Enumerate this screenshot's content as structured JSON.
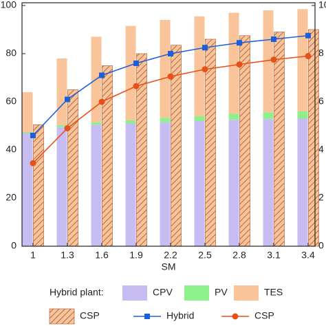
{
  "chart_data": {
    "type": "bar",
    "x_label": "SM",
    "categories": [
      "1",
      "1.3",
      "1.6",
      "1.9",
      "2.2",
      "2.5",
      "2.8",
      "3.1",
      "3.4"
    ],
    "legend_title": "Hybrid plant:",
    "series": [
      {
        "name": "CPV",
        "type": "bar",
        "stack": "hybrid",
        "color": "#c8bdf2",
        "values": [
          47,
          49.5,
          50.5,
          51,
          51.5,
          52,
          52.5,
          52.8,
          53
        ]
      },
      {
        "name": "PV",
        "type": "bar",
        "stack": "hybrid",
        "color": "#8ef08a",
        "values": [
          0.5,
          0.8,
          1,
          1.3,
          1.8,
          2,
          2.5,
          2.8,
          3
        ]
      },
      {
        "name": "TES",
        "type": "bar",
        "stack": "hybrid",
        "color": "#f9c49a",
        "values": [
          16.5,
          27.7,
          35.5,
          39.2,
          40.7,
          41.5,
          42,
          42.4,
          42.5
        ]
      },
      {
        "name": "CSP",
        "type": "bar",
        "stack": "csp",
        "color": "#f9c49a",
        "hatch": "#a0522d",
        "values": [
          50.5,
          65,
          75,
          80,
          83.5,
          86,
          87.5,
          89,
          90
        ]
      },
      {
        "name": "Hybrid",
        "type": "line",
        "axis": "y2",
        "color": "#1f5fd6",
        "marker": "square",
        "values": [
          4.6,
          6.1,
          7.1,
          7.6,
          8.0,
          8.25,
          8.45,
          8.6,
          8.75
        ]
      },
      {
        "name": "CSP",
        "type": "line",
        "axis": "y2",
        "color": "#e8501a",
        "marker": "circle",
        "values": [
          3.45,
          4.9,
          6.0,
          6.65,
          7.05,
          7.35,
          7.55,
          7.75,
          7.9
        ]
      }
    ],
    "ylim": [
      0,
      100
    ],
    "yticks": [
      0,
      20,
      40,
      60,
      80,
      100
    ],
    "y2lim": [
      0,
      10
    ],
    "y2ticks": [
      0,
      2,
      4,
      6,
      8,
      10
    ]
  }
}
